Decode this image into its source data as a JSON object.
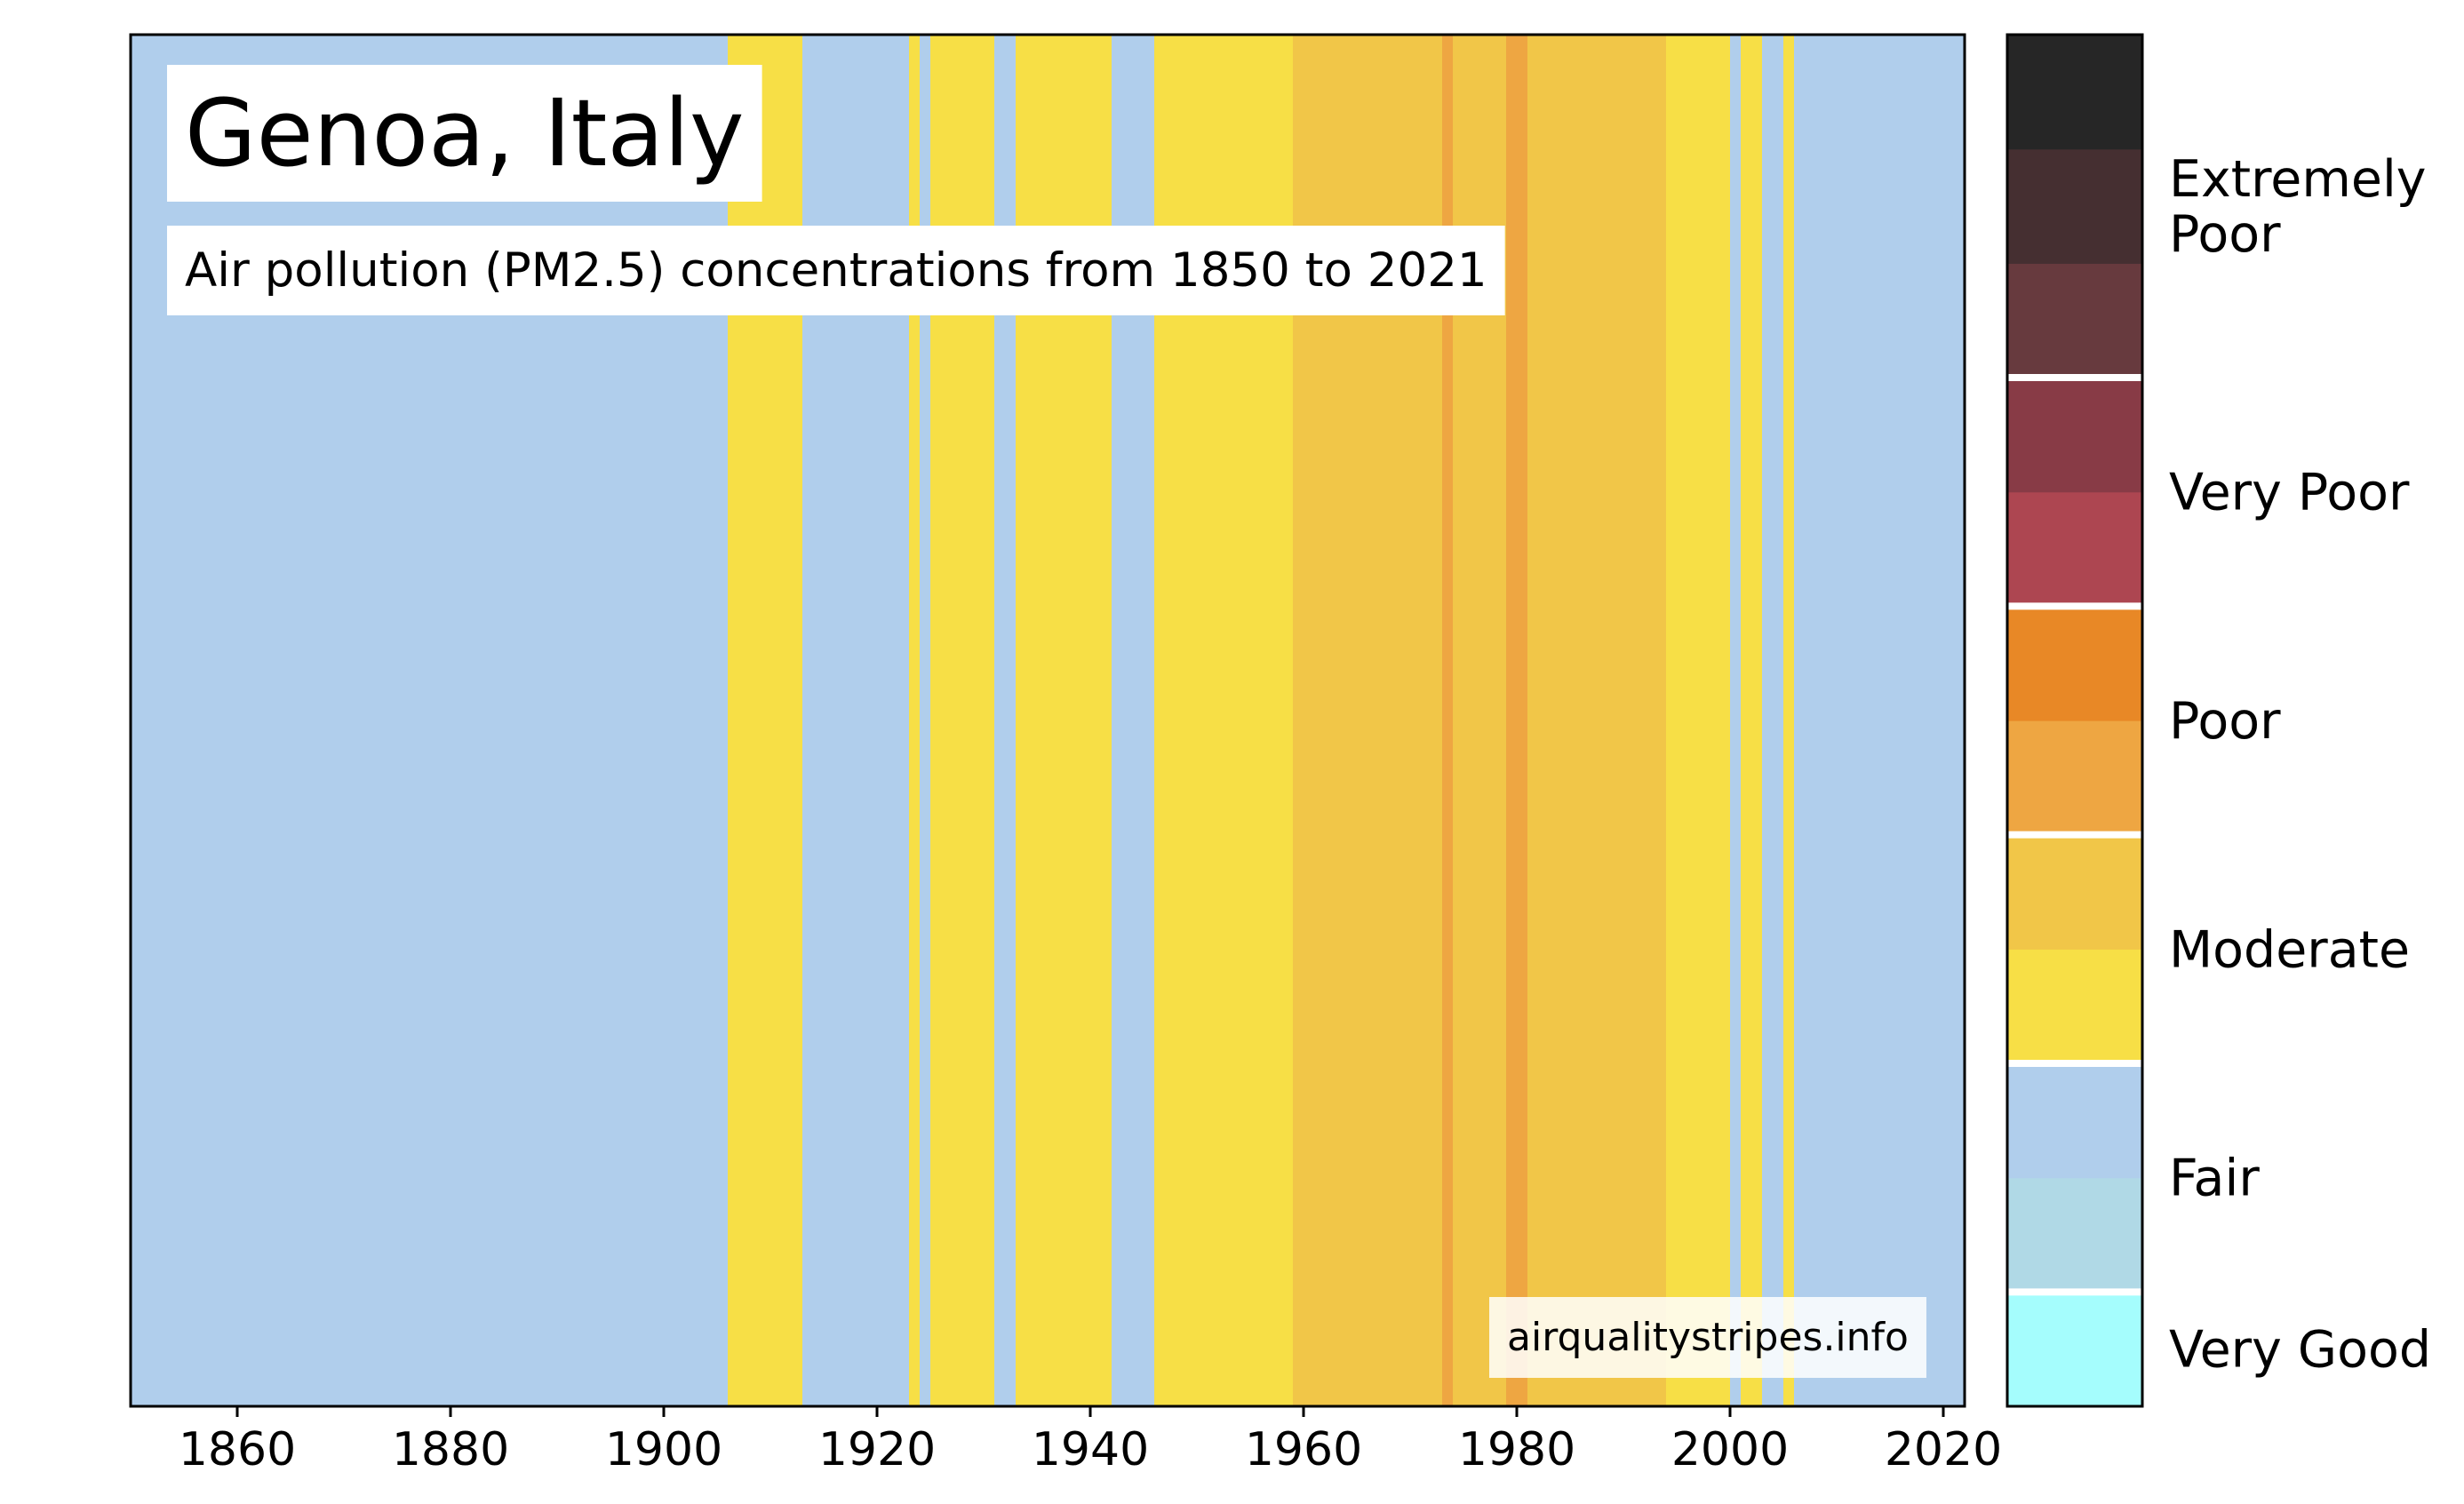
{
  "chart_data": {
    "type": "heatmap",
    "title": "Genoa, Italy",
    "subtitle": "Air pollution (PM2.5) concentrations from 1850 to 2021",
    "watermark": "airqualitystripes.info",
    "xlabel": "",
    "ylabel": "",
    "xlim": [
      1850,
      2022
    ],
    "x_ticks": [
      "1860",
      "1880",
      "1900",
      "1920",
      "1940",
      "1960",
      "1980",
      "2000",
      "2020"
    ],
    "grid": false,
    "colors": {
      "fair": "#b0ceec",
      "moderate_low": "#f7df46",
      "moderate_high": "#f1c648",
      "poor_low": "#eea642",
      "frame": "#000000"
    },
    "stripes": [
      {
        "start": 1850,
        "end": 1906,
        "level": "fair"
      },
      {
        "start": 1906,
        "end": 1913,
        "level": "moderate_low"
      },
      {
        "start": 1913,
        "end": 1923,
        "level": "fair"
      },
      {
        "start": 1923,
        "end": 1924,
        "level": "moderate_low"
      },
      {
        "start": 1924,
        "end": 1925,
        "level": "fair"
      },
      {
        "start": 1925,
        "end": 1931,
        "level": "moderate_low"
      },
      {
        "start": 1931,
        "end": 1933,
        "level": "fair"
      },
      {
        "start": 1933,
        "end": 1942,
        "level": "moderate_low"
      },
      {
        "start": 1942,
        "end": 1946,
        "level": "fair"
      },
      {
        "start": 1946,
        "end": 1959,
        "level": "moderate_low"
      },
      {
        "start": 1959,
        "end": 1973,
        "level": "moderate_high"
      },
      {
        "start": 1973,
        "end": 1974,
        "level": "poor_low"
      },
      {
        "start": 1974,
        "end": 1979,
        "level": "moderate_high"
      },
      {
        "start": 1979,
        "end": 1981,
        "level": "poor_low"
      },
      {
        "start": 1981,
        "end": 1994,
        "level": "moderate_high"
      },
      {
        "start": 1994,
        "end": 2000,
        "level": "moderate_low"
      },
      {
        "start": 2000,
        "end": 2001,
        "level": "fair"
      },
      {
        "start": 2001,
        "end": 2003,
        "level": "moderate_low"
      },
      {
        "start": 2003,
        "end": 2005,
        "level": "fair"
      },
      {
        "start": 2005,
        "end": 2006,
        "level": "moderate_low"
      },
      {
        "start": 2006,
        "end": 2022,
        "level": "fair"
      }
    ],
    "legend": {
      "placement": "right",
      "categories": [
        {
          "label": "Very Good",
          "colors": [
            "#a5fdfd"
          ]
        },
        {
          "label": "Fair",
          "colors": [
            "#b0d9e6",
            "#b0ceec"
          ]
        },
        {
          "label": "Moderate",
          "colors": [
            "#f7df46",
            "#f1c648"
          ]
        },
        {
          "label": "Poor",
          "colors": [
            "#eea642",
            "#e88826"
          ]
        },
        {
          "label": "Very Poor",
          "colors": [
            "#ad4651",
            "#883b46"
          ]
        },
        {
          "label": "Extremely Poor",
          "colors": [
            "#673a3e",
            "#452f31",
            "#262626"
          ]
        }
      ]
    }
  }
}
